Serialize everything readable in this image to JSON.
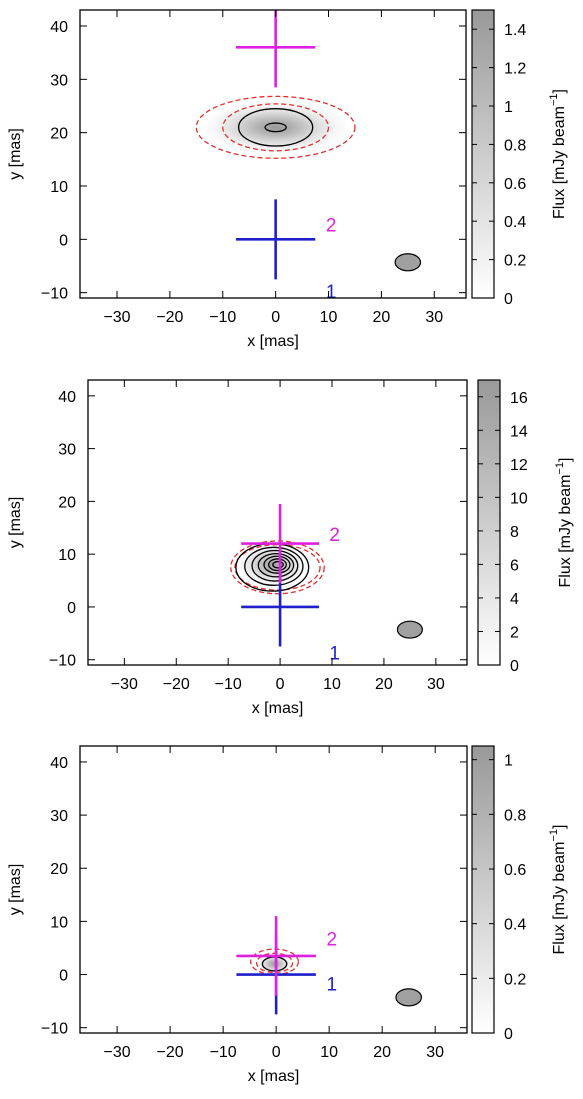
{
  "chart_data": [
    {
      "type": "heatmap",
      "xlabel": "x [mas]",
      "ylabel": "y [mas]",
      "colorbar_label": "Flux [mJy beam",
      "colorbar_label_exp": "−1",
      "xlim": [
        -37,
        36
      ],
      "ylim": [
        -11,
        43
      ],
      "xticks": [
        -30,
        -20,
        -10,
        0,
        10,
        20,
        30
      ],
      "xtick_labels": [
        "−30",
        "−20",
        "−10",
        "0",
        "10",
        "20",
        "30"
      ],
      "yticks": [
        -10,
        0,
        10,
        20,
        30,
        40
      ],
      "ytick_labels": [
        "−10",
        "0",
        "10",
        "20",
        "30",
        "40"
      ],
      "colorbar_range": [
        0,
        1.5
      ],
      "colorbar_ticks": [
        0,
        0.2,
        0.4,
        0.6,
        0.8,
        1,
        1.2,
        1.4
      ],
      "colorbar_tick_labels": [
        "0",
        "0.2",
        "0.4",
        "0.6",
        "0.8",
        "1",
        "1.2",
        "1.4"
      ],
      "emission": {
        "center": [
          0,
          21
        ],
        "rx": 14,
        "ry": 5,
        "peak": 1.5
      },
      "solid_contours": [
        {
          "cx": 0,
          "cy": 21,
          "rx": 7,
          "ry": 3.5
        },
        {
          "cx": 0,
          "cy": 21,
          "rx": 2,
          "ry": 0.8
        }
      ],
      "dashed_contours": [
        {
          "cx": 0,
          "cy": 21,
          "rx": 15,
          "ry": 5.8
        },
        {
          "cx": 0,
          "cy": 21,
          "rx": 10,
          "ry": 4.4
        }
      ],
      "markers": [
        {
          "label": "1",
          "x": 0,
          "y": 0,
          "arm_x": 7.5,
          "arm_y": 7.5,
          "color": "#1f1fcc",
          "label_x": 9.5,
          "label_y": -11
        },
        {
          "label": "2",
          "x": 0,
          "y": 36,
          "arm_x": 7.5,
          "arm_y": 7.5,
          "color": "#e020e0",
          "label_x": 9.5,
          "label_y": 1.5
        }
      ],
      "beam": {
        "x": 25,
        "y": -4.3,
        "rx": 2.4,
        "ry": 1.6
      },
      "grid": false
    },
    {
      "type": "heatmap",
      "xlabel": "x [mas]",
      "ylabel": "y [mas]",
      "colorbar_label": "Flux [mJy beam",
      "colorbar_label_exp": "−1",
      "xlim": [
        -37,
        36
      ],
      "ylim": [
        -11,
        43
      ],
      "xticks": [
        -30,
        -20,
        -10,
        0,
        10,
        20,
        30
      ],
      "xtick_labels": [
        "−30",
        "−20",
        "−10",
        "0",
        "10",
        "20",
        "30"
      ],
      "yticks": [
        -10,
        0,
        10,
        20,
        30,
        40
      ],
      "ytick_labels": [
        "−10",
        "0",
        "10",
        "20",
        "30",
        "40"
      ],
      "colorbar_range": [
        0,
        17
      ],
      "colorbar_ticks": [
        0,
        2,
        4,
        6,
        8,
        10,
        12,
        14,
        16
      ],
      "colorbar_tick_labels": [
        "0",
        "2",
        "4",
        "6",
        "8",
        "10",
        "12",
        "14",
        "16"
      ],
      "emission": {
        "center": [
          -1.5,
          8
        ],
        "rx": 7,
        "ry": 4,
        "peak": 16
      },
      "solid_contours": [
        {
          "cx": -1.5,
          "cy": 7.5,
          "rx": 7,
          "ry": 4.5
        },
        {
          "cx": -1.2,
          "cy": 7.7,
          "rx": 5.6,
          "ry": 3.6
        },
        {
          "cx": -1.0,
          "cy": 7.8,
          "rx": 4.4,
          "ry": 2.9
        },
        {
          "cx": -0.8,
          "cy": 7.9,
          "rx": 3.4,
          "ry": 2.2
        },
        {
          "cx": -0.6,
          "cy": 8.0,
          "rx": 2.5,
          "ry": 1.6
        },
        {
          "cx": -0.5,
          "cy": 8.0,
          "rx": 1.7,
          "ry": 1.1
        },
        {
          "cx": -0.4,
          "cy": 8.0,
          "rx": 1.0,
          "ry": 0.6
        }
      ],
      "dashed_contours": [
        {
          "cx": -0.5,
          "cy": 7.5,
          "rx": 9,
          "ry": 5
        },
        {
          "cx": -0.5,
          "cy": 7.5,
          "rx": 8.2,
          "ry": 4.3
        }
      ],
      "markers": [
        {
          "label": "1",
          "x": 0,
          "y": 0,
          "arm_x": 7.5,
          "arm_y": 7.5,
          "color": "#1f1fcc",
          "label_x": 9.5,
          "label_y": -10
        },
        {
          "label": "2",
          "x": 0,
          "y": 12,
          "arm_x": 7.5,
          "arm_y": 7.5,
          "color": "#e020e0",
          "label_x": 9.5,
          "label_y": 12.5
        }
      ],
      "beam": {
        "x": 25,
        "y": -4.3,
        "rx": 2.4,
        "ry": 1.6
      },
      "grid": false
    },
    {
      "type": "heatmap",
      "xlabel": "x [mas]",
      "ylabel": "y [mas]",
      "colorbar_label": "Flux [mJy beam",
      "colorbar_label_exp": "−1",
      "xlim": [
        -37,
        36
      ],
      "ylim": [
        -11,
        43
      ],
      "xticks": [
        -30,
        -20,
        -10,
        0,
        10,
        20,
        30
      ],
      "xtick_labels": [
        "−30",
        "−20",
        "−10",
        "0",
        "10",
        "20",
        "30"
      ],
      "yticks": [
        -10,
        0,
        10,
        20,
        30,
        40
      ],
      "ytick_labels": [
        "−10",
        "0",
        "10",
        "20",
        "30",
        "40"
      ],
      "colorbar_range": [
        0,
        1.05
      ],
      "colorbar_ticks": [
        0,
        0.2,
        0.4,
        0.6,
        0.8,
        1
      ],
      "colorbar_tick_labels": [
        "0",
        "0.2",
        "0.4",
        "0.6",
        "0.8",
        "1"
      ],
      "emission": {
        "center": [
          -0.3,
          2
        ],
        "rx": 3.5,
        "ry": 2,
        "peak": 1.0
      },
      "solid_contours": [
        {
          "cx": -0.3,
          "cy": 2,
          "rx": 2.3,
          "ry": 1.3
        }
      ],
      "dashed_contours": [
        {
          "cx": -0.3,
          "cy": 2.4,
          "rx": 4.5,
          "ry": 2.4
        },
        {
          "cx": -0.3,
          "cy": 2.2,
          "rx": 3.4,
          "ry": 1.8
        }
      ],
      "markers": [
        {
          "label": "1",
          "x": 0,
          "y": 0,
          "arm_x": 7.5,
          "arm_y": 7.5,
          "color": "#1f1fcc",
          "label_x": 9.5,
          "label_y": -3
        },
        {
          "label": "2",
          "x": 0,
          "y": 3.5,
          "arm_x": 7.5,
          "arm_y": 7.5,
          "color": "#e020e0",
          "label_x": 9.5,
          "label_y": 5.5
        }
      ],
      "beam": {
        "x": 25,
        "y": -4.3,
        "rx": 2.4,
        "ry": 1.6
      },
      "grid": false
    }
  ]
}
